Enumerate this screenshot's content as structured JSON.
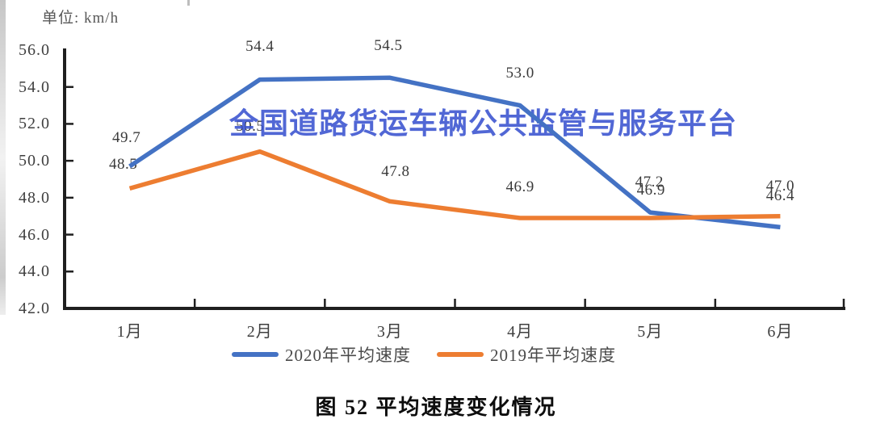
{
  "page": {
    "unit_label": "单位: km/h",
    "watermark_text": "全国道路货运车辆公共监管与服务平台",
    "caption": "图 52 平均速度变化情况"
  },
  "chart_data": {
    "type": "line",
    "title": "平均速度变化情况",
    "unit": "km/h",
    "categories": [
      "1月",
      "2月",
      "3月",
      "4月",
      "5月",
      "6月"
    ],
    "series": [
      {
        "name": "2020年平均速度",
        "color": "#4472C4",
        "values": [
          49.7,
          54.4,
          54.5,
          53.0,
          47.2,
          46.4
        ]
      },
      {
        "name": "2019年平均速度",
        "color": "#ED7D31",
        "values": [
          48.5,
          50.5,
          47.8,
          46.9,
          46.9,
          47.0
        ]
      }
    ],
    "ylim": [
      42.0,
      56.0
    ],
    "ytick_step": 2.0,
    "ytick_labels": [
      "56.0",
      "54.0",
      "52.0",
      "50.0",
      "48.0",
      "46.0",
      "44.0",
      "42.0"
    ],
    "grid": false,
    "data_labels": true,
    "legend_position": "bottom"
  },
  "colors": {
    "watermark": "#3a53d0",
    "axis": "#1f1f1f",
    "label_text": "#3a3a3a"
  }
}
